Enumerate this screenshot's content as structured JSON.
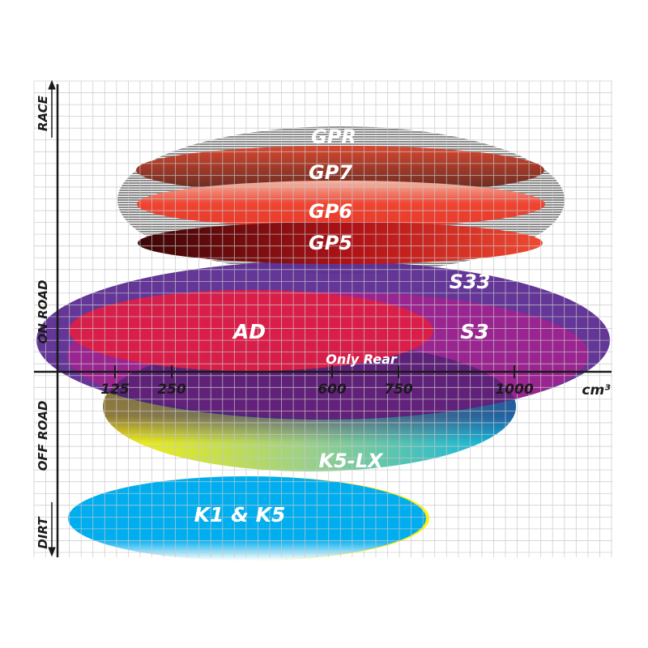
{
  "x_axis": {
    "unit": "cm³",
    "ticks": [
      {
        "label": "125",
        "value": 125
      },
      {
        "label": "250",
        "value": 250
      },
      {
        "label": "600",
        "value": 600
      },
      {
        "label": "750",
        "value": 750
      },
      {
        "label": "1000",
        "value": 1000
      }
    ]
  },
  "y_axis": {
    "labels": [
      "RACE",
      "ON ROAD",
      "OFF ROAD",
      "DIRT"
    ]
  },
  "tires": [
    {
      "id": "gpr",
      "label": "GPR",
      "color": "#9a9a9a"
    },
    {
      "id": "gp7",
      "label": "GP7",
      "color": "#c9452f"
    },
    {
      "id": "gp6",
      "label": "GP6",
      "color": "#ee4430"
    },
    {
      "id": "gp5",
      "label": "GP5",
      "color": "#8a1010"
    },
    {
      "id": "s33",
      "label": "S33",
      "color": "#5b2b91"
    },
    {
      "id": "s3",
      "label": "S3",
      "color": "#a0228f"
    },
    {
      "id": "ad",
      "label": "AD",
      "color": "#dd1f47"
    },
    {
      "id": "k5lx",
      "label": "K5-LX",
      "color": "#1ab7d6"
    },
    {
      "id": "k1k5",
      "label": "K1 & K5",
      "color": "#00aeef"
    }
  ],
  "note": "Only Rear"
}
